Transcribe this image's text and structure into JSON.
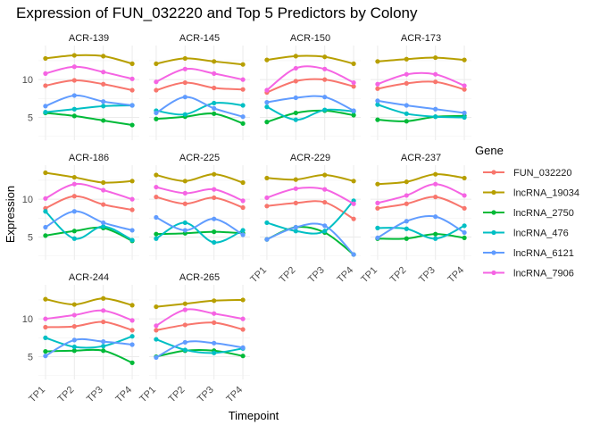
{
  "chart_data": {
    "type": "line",
    "title": "Expression of FUN_032220 and Top 5 Predictors by Colony",
    "xlabel": "Timepoint",
    "ylabel": "Expression",
    "x": [
      "TP1",
      "TP2",
      "TP3",
      "TP4"
    ],
    "y_ticks": [
      5,
      10
    ],
    "ylim": [
      2.0,
      14.5
    ],
    "grid": true,
    "legend": {
      "title": "Gene",
      "position": "right"
    },
    "series_colors": {
      "FUN_032220": "#F8766D",
      "lncRNA_19034": "#B79F00",
      "lncRNA_2750": "#00BA38",
      "lncRNA_476": "#00BFC4",
      "lncRNA_6121": "#619CFF",
      "lncRNA_7906": "#F564E3"
    },
    "series_order": [
      "FUN_032220",
      "lncRNA_19034",
      "lncRNA_2750",
      "lncRNA_476",
      "lncRNA_6121",
      "lncRNA_7906"
    ],
    "panels": [
      {
        "name": "ACR-139",
        "series": {
          "FUN_032220": [
            9.2,
            9.9,
            9.4,
            8.6
          ],
          "lncRNA_19034": [
            12.8,
            13.2,
            13.1,
            12.1
          ],
          "lncRNA_2750": [
            5.6,
            5.2,
            4.6,
            4.0
          ],
          "lncRNA_476": [
            5.7,
            6.1,
            6.5,
            6.6
          ],
          "lncRNA_6121": [
            6.5,
            7.9,
            7.1,
            6.6
          ],
          "lncRNA_7906": [
            10.8,
            11.7,
            11.0,
            10.1
          ]
        }
      },
      {
        "name": "ACR-145",
        "series": {
          "FUN_032220": [
            8.6,
            9.6,
            8.9,
            8.7
          ],
          "lncRNA_19034": [
            12.1,
            12.8,
            12.4,
            12.0
          ],
          "lncRNA_2750": [
            4.8,
            5.1,
            5.5,
            4.2
          ],
          "lncRNA_476": [
            5.9,
            5.4,
            6.9,
            6.6
          ],
          "lncRNA_6121": [
            5.6,
            7.7,
            6.2,
            5.1
          ],
          "lncRNA_7906": [
            9.7,
            11.4,
            10.8,
            10.0
          ]
        }
      },
      {
        "name": "ACR-150",
        "series": {
          "FUN_032220": [
            8.3,
            9.8,
            10.0,
            9.1
          ],
          "lncRNA_19034": [
            12.6,
            13.1,
            13.0,
            12.1
          ],
          "lncRNA_2750": [
            4.4,
            5.6,
            5.9,
            5.3
          ],
          "lncRNA_476": [
            6.4,
            4.7,
            6.0,
            5.8
          ],
          "lncRNA_6121": [
            7.0,
            7.6,
            7.7,
            5.9
          ],
          "lncRNA_7906": [
            8.6,
            11.5,
            11.4,
            9.6
          ]
        }
      },
      {
        "name": "ACR-173",
        "series": {
          "FUN_032220": [
            8.8,
            9.5,
            9.7,
            8.7
          ],
          "lncRNA_19034": [
            12.4,
            12.7,
            12.9,
            12.6
          ],
          "lncRNA_2750": [
            4.7,
            4.5,
            5.1,
            5.2
          ],
          "lncRNA_476": [
            6.7,
            5.5,
            5.1,
            5.0
          ],
          "lncRNA_6121": [
            7.2,
            6.6,
            6.1,
            5.6
          ],
          "lncRNA_7906": [
            9.4,
            10.7,
            10.7,
            9.2
          ]
        }
      },
      {
        "name": "ACR-186",
        "series": {
          "FUN_032220": [
            8.8,
            10.4,
            9.3,
            8.6
          ],
          "lncRNA_19034": [
            13.5,
            12.9,
            12.2,
            12.4
          ],
          "lncRNA_2750": [
            5.2,
            5.8,
            6.2,
            4.5
          ],
          "lncRNA_476": [
            8.4,
            4.8,
            6.4,
            4.6
          ],
          "lncRNA_6121": [
            6.3,
            8.4,
            6.9,
            5.9
          ],
          "lncRNA_7906": [
            10.1,
            12.0,
            11.2,
            10.0
          ]
        }
      },
      {
        "name": "ACR-225",
        "series": {
          "FUN_032220": [
            10.3,
            9.4,
            10.2,
            8.9
          ],
          "lncRNA_19034": [
            13.2,
            12.4,
            13.3,
            12.2
          ],
          "lncRNA_2750": [
            5.4,
            5.5,
            5.7,
            5.5
          ],
          "lncRNA_476": [
            4.8,
            6.9,
            4.3,
            5.9
          ],
          "lncRNA_6121": [
            7.6,
            5.9,
            7.4,
            5.3
          ],
          "lncRNA_7906": [
            11.6,
            10.8,
            11.3,
            9.8
          ]
        }
      },
      {
        "name": "ACR-229",
        "series": {
          "FUN_032220": [
            9.1,
            9.5,
            9.6,
            7.4
          ],
          "lncRNA_19034": [
            12.8,
            12.6,
            13.2,
            12.4
          ],
          "lncRNA_2750": [
            4.7,
            6.3,
            5.6,
            2.7
          ],
          "lncRNA_476": [
            6.9,
            5.8,
            5.8,
            9.8
          ],
          "lncRNA_6121": [
            4.7,
            6.3,
            6.5,
            2.7
          ],
          "lncRNA_7906": [
            10.2,
            11.4,
            11.3,
            9.4
          ]
        }
      },
      {
        "name": "ACR-237",
        "series": {
          "FUN_032220": [
            8.8,
            9.4,
            10.3,
            8.8
          ],
          "lncRNA_19034": [
            12.0,
            12.3,
            13.3,
            12.8
          ],
          "lncRNA_2750": [
            4.8,
            4.8,
            5.4,
            4.9
          ],
          "lncRNA_476": [
            6.2,
            6.1,
            4.8,
            6.5
          ],
          "lncRNA_6121": [
            4.9,
            7.1,
            7.7,
            5.6
          ],
          "lncRNA_7906": [
            9.5,
            10.5,
            12.0,
            10.5
          ]
        }
      },
      {
        "name": "ACR-244",
        "series": {
          "FUN_032220": [
            8.9,
            9.0,
            9.6,
            8.5
          ],
          "lncRNA_19034": [
            12.6,
            11.9,
            12.7,
            11.8
          ],
          "lncRNA_2750": [
            5.7,
            5.8,
            5.8,
            4.2
          ],
          "lncRNA_476": [
            7.5,
            6.3,
            6.4,
            7.7
          ],
          "lncRNA_6121": [
            5.1,
            7.2,
            7.0,
            6.6
          ],
          "lncRNA_7906": [
            10.0,
            10.5,
            11.1,
            9.8
          ]
        }
      },
      {
        "name": "ACR-265",
        "series": {
          "FUN_032220": [
            8.5,
            9.2,
            9.5,
            8.6
          ],
          "lncRNA_19034": [
            11.6,
            12.0,
            12.4,
            12.5
          ],
          "lncRNA_2750": [
            5.0,
            5.8,
            5.8,
            5.1
          ],
          "lncRNA_476": [
            7.3,
            5.9,
            5.5,
            6.1
          ],
          "lncRNA_6121": [
            4.9,
            6.9,
            6.8,
            6.2
          ],
          "lncRNA_7906": [
            9.1,
            11.2,
            10.7,
            10.0
          ]
        }
      }
    ]
  }
}
